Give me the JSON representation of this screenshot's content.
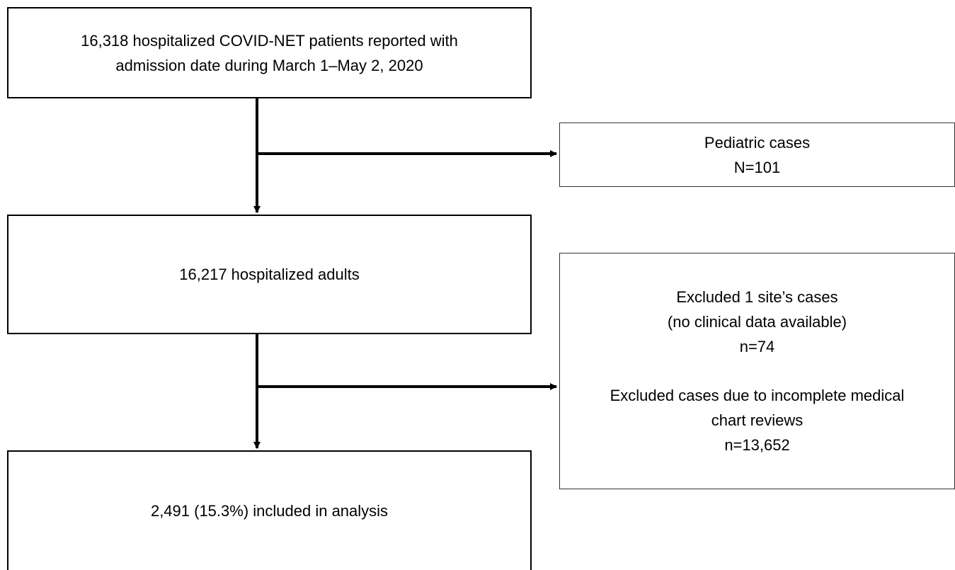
{
  "nodes": [
    {
      "lines": [
        "16,318 hospitalized COVID-NET patients reported with",
        "admission date during March 1–May 2, 2020"
      ]
    },
    {
      "lines": [
        "Pediatric cases",
        "N=101"
      ]
    },
    {
      "lines": [
        "16,217 hospitalized adults"
      ]
    },
    {
      "sections": [
        {
          "lines": [
            "Excluded 1 site’s cases",
            "(no clinical data available)",
            "n=74"
          ]
        },
        {
          "lines": [
            "Excluded cases due to incomplete medical",
            "chart reviews",
            "n=13,652"
          ]
        }
      ]
    },
    {
      "lines": [
        "2,491 (15.3%) included in analysis"
      ]
    }
  ]
}
